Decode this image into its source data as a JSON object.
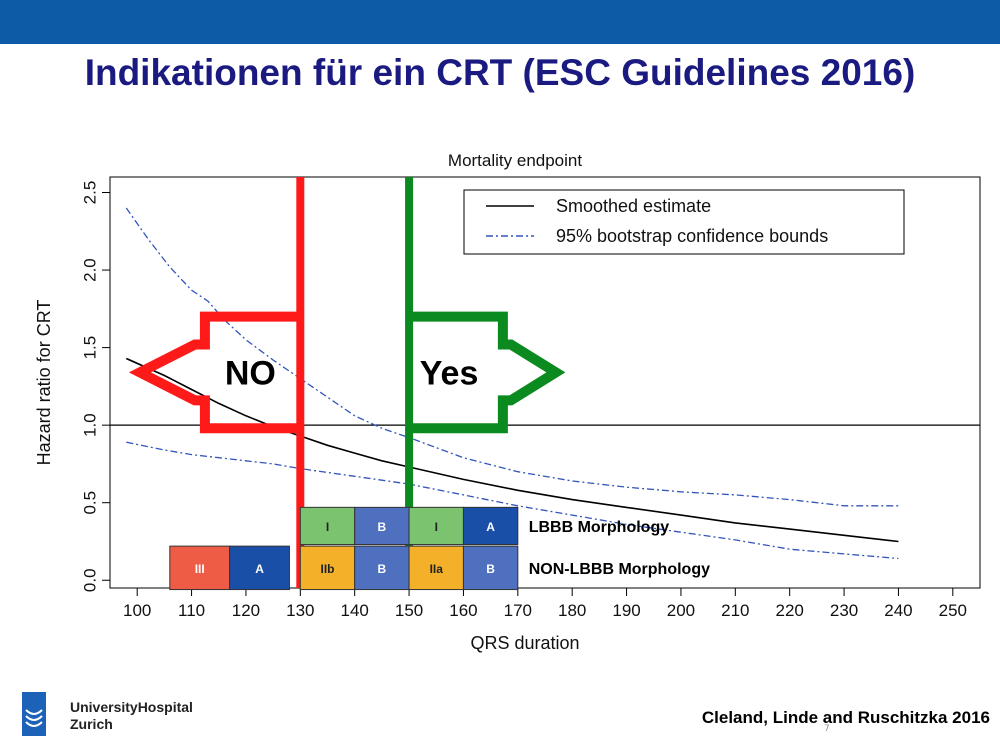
{
  "slide": {
    "title": "Indikationen für ein CRT (ESC Guidelines 2016)",
    "citation": "Cleland, Linde and Ruschitzka 2016",
    "logo_line1": "UniversityHospital",
    "logo_line2": "Zurich",
    "page_number": "7",
    "header_color": "#0d5aa7",
    "title_color": "#1a1a80"
  },
  "chart_data": {
    "type": "line",
    "title": "Mortality endpoint",
    "xlabel": "QRS duration",
    "ylabel": "Hazard ratio for CRT",
    "xlim": [
      95,
      255
    ],
    "ylim": [
      -0.05,
      2.6
    ],
    "x_ticks": [
      100,
      110,
      120,
      130,
      140,
      150,
      160,
      170,
      180,
      190,
      200,
      210,
      220,
      230,
      240,
      250
    ],
    "y_ticks": [
      0.0,
      0.5,
      1.0,
      1.5,
      2.0,
      2.5
    ],
    "y_tick_labels": [
      "0.0",
      "0.5",
      "1.0",
      "1.5",
      "2.0",
      "2.5"
    ],
    "reference_line_y": 1.0,
    "legend_position": "top-right",
    "series": [
      {
        "name": "Smoothed estimate",
        "style": "solid",
        "color": "#000000",
        "x": [
          98,
          105,
          110,
          115,
          120,
          125,
          130,
          135,
          140,
          145,
          150,
          160,
          170,
          180,
          190,
          200,
          210,
          220,
          230,
          240
        ],
        "y": [
          1.43,
          1.32,
          1.23,
          1.14,
          1.06,
          0.99,
          0.93,
          0.87,
          0.82,
          0.77,
          0.73,
          0.65,
          0.58,
          0.52,
          0.47,
          0.42,
          0.37,
          0.33,
          0.29,
          0.25
        ]
      },
      {
        "name": "95% bootstrap confidence bounds",
        "style": "dashdot",
        "color": "#3355bb",
        "x": [
          98,
          102,
          106,
          110,
          113,
          116,
          120,
          125,
          130,
          135,
          140,
          145,
          150,
          160,
          170,
          180,
          190,
          200,
          205,
          210,
          220,
          230,
          240
        ],
        "y": [
          2.4,
          2.2,
          2.02,
          1.87,
          1.8,
          1.68,
          1.55,
          1.42,
          1.3,
          1.18,
          1.06,
          0.98,
          0.92,
          0.79,
          0.7,
          0.64,
          0.6,
          0.57,
          0.56,
          0.55,
          0.52,
          0.48,
          0.48
        ]
      },
      {
        "name": "",
        "style": "dashdot",
        "color": "#3355bb",
        "x": [
          98,
          105,
          110,
          115,
          120,
          125,
          130,
          140,
          150,
          160,
          170,
          180,
          190,
          200,
          210,
          220,
          230,
          240
        ],
        "y": [
          0.89,
          0.84,
          0.81,
          0.79,
          0.77,
          0.75,
          0.72,
          0.67,
          0.62,
          0.55,
          0.48,
          0.42,
          0.36,
          0.31,
          0.26,
          0.2,
          0.17,
          0.14
        ]
      }
    ],
    "vertical_markers": [
      {
        "x": 130,
        "color": "#ff1a1a"
      },
      {
        "x": 150,
        "color": "#0b8a1f"
      }
    ],
    "arrows": [
      {
        "label": "NO",
        "direction": "left",
        "color": "#ff1a1a",
        "x_from": 100.5,
        "x_to": 130,
        "y_from": 0.98,
        "y_to": 1.7
      },
      {
        "label": "Yes",
        "direction": "right",
        "color": "#0b8a1f",
        "x_from": 150,
        "x_to": 177,
        "y_from": 0.98,
        "y_to": 1.7
      }
    ],
    "recommendation_boxes": [
      {
        "row": "lbbb",
        "x_from": 130,
        "x_to": 140,
        "class": "I",
        "color": "#7cc370"
      },
      {
        "row": "lbbb",
        "x_from": 140,
        "x_to": 150,
        "class": "B",
        "color": "#4f6fbf"
      },
      {
        "row": "lbbb",
        "x_from": 150,
        "x_to": 160,
        "class": "I",
        "color": "#7cc370"
      },
      {
        "row": "lbbb",
        "x_from": 160,
        "x_to": 170,
        "class": "A",
        "color": "#1a4fa8"
      },
      {
        "row": "non_lbbb",
        "x_from": 106,
        "x_to": 117,
        "class": "III",
        "color": "#ef5c45"
      },
      {
        "row": "non_lbbb",
        "x_from": 117,
        "x_to": 128,
        "class": "A",
        "color": "#1a4fa8"
      },
      {
        "row": "non_lbbb",
        "x_from": 130,
        "x_to": 140,
        "class": "IIb",
        "color": "#f5b02a"
      },
      {
        "row": "non_lbbb",
        "x_from": 140,
        "x_to": 150,
        "class": "B",
        "color": "#4f6fbf"
      },
      {
        "row": "non_lbbb",
        "x_from": 150,
        "x_to": 160,
        "class": "IIa",
        "color": "#f5b02a"
      },
      {
        "row": "non_lbbb",
        "x_from": 160,
        "x_to": 170,
        "class": "B",
        "color": "#4f6fbf"
      }
    ],
    "row_labels": {
      "lbbb": "LBBB Morphology",
      "non_lbbb": "NON-LBBB Morphology"
    },
    "row_values": {
      "lbbb": [
        0.23,
        0.47
      ],
      "non_lbbb": [
        -0.06,
        0.22
      ]
    }
  }
}
